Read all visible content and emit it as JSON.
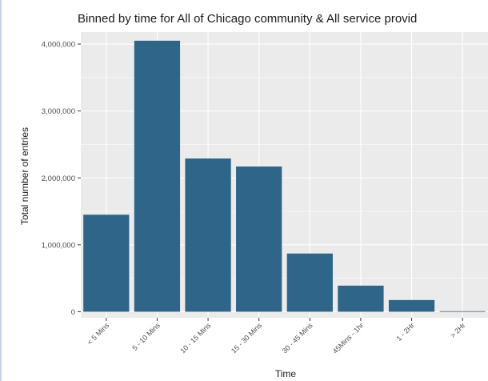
{
  "chart_data": {
    "type": "bar",
    "title": "Binned by time for All of Chicago  community &  All  service provid",
    "xlabel": "Time",
    "ylabel": "Total number of entries",
    "categories": [
      "< 5 Mins",
      "5 - 10 Mins",
      "10 - 15 Mins",
      "15 - 30 Mins",
      "30 - 45 Mins",
      "45Mins - 1hr",
      "1 - 2Hr",
      "> 2Hr"
    ],
    "values": [
      1450000,
      4050000,
      2290000,
      2170000,
      870000,
      390000,
      175000,
      8000
    ],
    "yticks": [
      0,
      1000000,
      2000000,
      3000000,
      4000000
    ],
    "ytick_labels": [
      "0",
      "1,000,000",
      "2,000,000",
      "3,000,000",
      "4,000,000"
    ],
    "ylim": [
      -90000,
      4180000
    ],
    "grid": true,
    "bar_color": "#2e6588",
    "panel_color": "#ebebeb",
    "grid_color": "#ffffff"
  }
}
